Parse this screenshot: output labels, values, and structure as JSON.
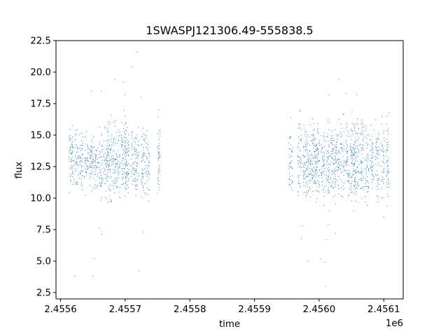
{
  "chart_data": {
    "type": "scatter",
    "title": "1SWASPJ121306.49-555838.5",
    "xlabel": "time",
    "ylabel": "flux",
    "x_offset_label": "1e6",
    "xlim": [
      2455593,
      2456130
    ],
    "ylim": [
      2.0,
      22.5
    ],
    "x_ticks": [
      2455600,
      2455700,
      2455800,
      2455900,
      2456000,
      2456100
    ],
    "x_tick_labels": [
      "2.4556",
      "2.4557",
      "2.4558",
      "2.4559",
      "2.4560",
      "2.4561"
    ],
    "y_ticks": [
      2.5,
      5.0,
      7.5,
      10.0,
      12.5,
      15.0,
      17.5,
      20.0,
      22.5
    ],
    "y_tick_labels": [
      "2.5",
      "5.0",
      "7.5",
      "10.0",
      "12.5",
      "15.0",
      "17.5",
      "20.0",
      "22.5"
    ],
    "grid": false,
    "marker_color": "#1f77b4",
    "series": [
      {
        "clusters": [
          {
            "x": 2455617,
            "y_low": 10.0,
            "y_high": 16.2,
            "width": 4,
            "count": 60
          },
          {
            "x": 2455625,
            "y_low": 10.5,
            "y_high": 16.0,
            "width": 3,
            "count": 40
          },
          {
            "x": 2455632,
            "y_low": 10.0,
            "y_high": 16.0,
            "width": 3,
            "count": 45
          },
          {
            "x": 2455640,
            "y_low": 10.0,
            "y_high": 15.5,
            "width": 3,
            "count": 40
          },
          {
            "x": 2455648,
            "y_low": 10.5,
            "y_high": 15.5,
            "width": 3,
            "count": 55
          },
          {
            "x": 2455655,
            "y_low": 10.0,
            "y_high": 15.0,
            "width": 3,
            "count": 40
          },
          {
            "x": 2455662,
            "y_low": 9.8,
            "y_high": 16.0,
            "width": 3,
            "count": 45
          },
          {
            "x": 2455670,
            "y_low": 9.5,
            "y_high": 16.5,
            "width": 4,
            "count": 55
          },
          {
            "x": 2455676,
            "y_low": 9.0,
            "y_high": 17.0,
            "width": 4,
            "count": 70
          },
          {
            "x": 2455684,
            "y_low": 9.0,
            "y_high": 16.5,
            "width": 3,
            "count": 50
          },
          {
            "x": 2455690,
            "y_low": 9.5,
            "y_high": 16.0,
            "width": 3,
            "count": 40
          },
          {
            "x": 2455698,
            "y_low": 9.0,
            "y_high": 17.0,
            "width": 4,
            "count": 75
          },
          {
            "x": 2455703,
            "y_low": 9.0,
            "y_high": 16.5,
            "width": 3,
            "count": 55
          },
          {
            "x": 2455712,
            "y_low": 9.5,
            "y_high": 16.0,
            "width": 3,
            "count": 40
          },
          {
            "x": 2455718,
            "y_low": 9.0,
            "y_high": 16.5,
            "width": 3,
            "count": 50
          },
          {
            "x": 2455728,
            "y_low": 9.0,
            "y_high": 16.5,
            "width": 3,
            "count": 50
          },
          {
            "x": 2455735,
            "y_low": 9.0,
            "y_high": 16.0,
            "width": 3,
            "count": 40
          },
          {
            "x": 2455752,
            "y_low": 9.0,
            "y_high": 17.0,
            "width": 2,
            "count": 45
          },
          {
            "x": 2455956,
            "y_low": 9.0,
            "y_high": 16.5,
            "width": 3,
            "count": 45
          },
          {
            "x": 2455970,
            "y_low": 9.5,
            "y_high": 17.5,
            "width": 3,
            "count": 50
          },
          {
            "x": 2455978,
            "y_low": 9.0,
            "y_high": 16.5,
            "width": 3,
            "count": 55
          },
          {
            "x": 2455984,
            "y_low": 9.0,
            "y_high": 17.0,
            "width": 3,
            "count": 55
          },
          {
            "x": 2455992,
            "y_low": 9.0,
            "y_high": 17.0,
            "width": 4,
            "count": 80
          },
          {
            "x": 2455998,
            "y_low": 9.0,
            "y_high": 16.5,
            "width": 3,
            "count": 55
          },
          {
            "x": 2456006,
            "y_low": 9.0,
            "y_high": 17.0,
            "width": 3,
            "count": 50
          },
          {
            "x": 2456014,
            "y_low": 9.0,
            "y_high": 16.5,
            "width": 3,
            "count": 55
          },
          {
            "x": 2456022,
            "y_low": 9.0,
            "y_high": 17.0,
            "width": 4,
            "count": 70
          },
          {
            "x": 2456028,
            "y_low": 9.0,
            "y_high": 16.5,
            "width": 3,
            "count": 55
          },
          {
            "x": 2456036,
            "y_low": 9.5,
            "y_high": 17.0,
            "width": 3,
            "count": 50
          },
          {
            "x": 2456044,
            "y_low": 9.0,
            "y_high": 16.5,
            "width": 3,
            "count": 50
          },
          {
            "x": 2456052,
            "y_low": 9.0,
            "y_high": 17.5,
            "width": 4,
            "count": 80
          },
          {
            "x": 2456058,
            "y_low": 9.0,
            "y_high": 17.0,
            "width": 4,
            "count": 70
          },
          {
            "x": 2456066,
            "y_low": 9.0,
            "y_high": 18.0,
            "width": 3,
            "count": 55
          },
          {
            "x": 2456074,
            "y_low": 9.0,
            "y_high": 16.5,
            "width": 3,
            "count": 50
          },
          {
            "x": 2456082,
            "y_low": 9.0,
            "y_high": 16.5,
            "width": 3,
            "count": 45
          },
          {
            "x": 2456090,
            "y_low": 9.0,
            "y_high": 16.5,
            "width": 3,
            "count": 45
          },
          {
            "x": 2456098,
            "y_low": 9.0,
            "y_high": 16.5,
            "width": 3,
            "count": 40
          },
          {
            "x": 2456106,
            "y_low": 9.0,
            "y_high": 17.0,
            "width": 2,
            "count": 50
          }
        ],
        "outliers": [
          [
            2455718,
            21.6
          ],
          [
            2455710,
            20.4
          ],
          [
            2455697,
            19.2
          ],
          [
            2455684,
            19.4
          ],
          [
            2455648,
            18.5
          ],
          [
            2455663,
            18.5
          ],
          [
            2455699,
            18.2
          ],
          [
            2455724,
            18.0
          ],
          [
            2455653,
            5.2
          ],
          [
            2455650,
            3.8
          ],
          [
            2455664,
            7.1
          ],
          [
            2455722,
            4.2
          ],
          [
            2455728,
            7.3
          ],
          [
            2455660,
            7.6
          ],
          [
            2455622,
            3.8
          ],
          [
            2455973,
            6.8
          ],
          [
            2455974,
            7.8
          ],
          [
            2455983,
            5.0
          ],
          [
            2456002,
            5.2
          ],
          [
            2456009,
            4.9
          ],
          [
            2456010,
            3.0
          ],
          [
            2456014,
            7.9
          ],
          [
            2456011,
            6.7
          ],
          [
            2456030,
            19.4
          ],
          [
            2456015,
            18.2
          ],
          [
            2456042,
            18.3
          ],
          [
            2456058,
            18.2
          ],
          [
            2456025,
            7.2
          ],
          [
            2456100,
            8.5
          ]
        ]
      }
    ]
  }
}
